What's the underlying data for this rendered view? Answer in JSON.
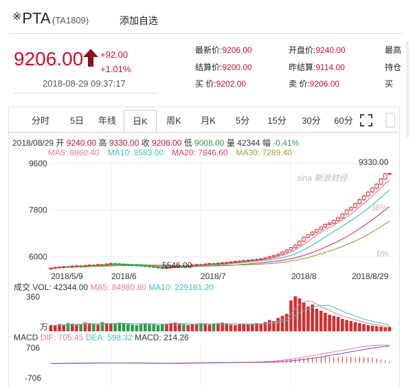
{
  "header": {
    "star_glyph": "※",
    "name": "PTA",
    "code": "(TA1809)",
    "watch_label": "添加自选"
  },
  "quote": {
    "price": "9206.00",
    "change": "+92.00",
    "change_pct": "+1.01%",
    "time": "2018-08-29 09:37:17",
    "fields": [
      {
        "label": "最新价:",
        "value": "9206.00"
      },
      {
        "label": "结算价:",
        "value": "9200.00"
      },
      {
        "label": "买  价:",
        "value": "9202.00"
      },
      {
        "label": "开盘价:",
        "value": "9240.00"
      },
      {
        "label": "昨结算:",
        "value": "9114.00"
      },
      {
        "label": "卖  价:",
        "value": "9206.00"
      },
      {
        "label": "最高"
      },
      {
        "label": "持仓"
      },
      {
        "label": "买"
      }
    ]
  },
  "tabs": [
    "分时",
    "5日",
    "年线",
    "日K",
    "周K",
    "月K",
    "5分",
    "15分",
    "30分",
    "60分"
  ],
  "active_tab": 3,
  "toolbar": {
    "fullscreen_icon": "fullscreen-icon"
  },
  "kinfo": {
    "date": "2018/08/29",
    "open_label": "开",
    "open": "9240.00",
    "high_label": "高",
    "high": "9330.00",
    "close_label": "收",
    "close": "9206.00",
    "low_label": "低",
    "low": "9008.00",
    "vol_label": "量",
    "vol": "42344",
    "amp_label": "幅",
    "amp": "-0.41%"
  },
  "ma": [
    {
      "label": "MA5: 8860.40",
      "color": "#e8799b"
    },
    {
      "label": "MA10: 8583.00",
      "color": "#3fbfc4"
    },
    {
      "label": "MA20: 7846.60",
      "color": "#d0407a"
    },
    {
      "label": "MA30: 7289.40",
      "color": "#9aa33a"
    }
  ],
  "watermark": "sina 新浪财经",
  "chart_data": [
    {
      "type": "candlestick",
      "y_ticks": [
        "9600",
        "7800",
        "6000"
      ],
      "y_values": [
        9600,
        7800,
        6000
      ],
      "x_ticks": [
        "2018/5/9",
        "2018/6",
        "2018/7",
        "2018/8",
        "2018/8/29"
      ],
      "right_labels": [
        "38%",
        "6%"
      ],
      "annotations": {
        "max": "9330.00",
        "min": "5546.00"
      },
      "closes": [
        5560,
        5590,
        5600,
        5620,
        5610,
        5640,
        5650,
        5630,
        5660,
        5680,
        5670,
        5700,
        5690,
        5720,
        5740,
        5730,
        5710,
        5700,
        5690,
        5680,
        5670,
        5650,
        5640,
        5620,
        5600,
        5580,
        5560,
        5580,
        5600,
        5620,
        5640,
        5630,
        5650,
        5680,
        5700,
        5690,
        5720,
        5740,
        5730,
        5750,
        5770,
        5780,
        5800,
        5820,
        5830,
        5850,
        5870,
        5880,
        5900,
        5920,
        5960,
        6000,
        6050,
        6100,
        6180,
        6260,
        6350,
        6450,
        6600,
        6750,
        6850,
        6950,
        7050,
        7150,
        7250,
        7300,
        7400,
        7500,
        7650,
        7800,
        7900,
        8050,
        8200,
        8350,
        8500,
        8650,
        8800,
        9000,
        9200,
        9206
      ]
    },
    {
      "type": "bar",
      "label_prefix": "成交",
      "vol_label": "VOL: 42344.00",
      "ma5_label": "MA5: 84980.80",
      "ma10_label": "MA10: 229181.20",
      "y_top": "360",
      "unit": "万",
      "ylim": [
        0,
        360
      ],
      "values": [
        60,
        55,
        70,
        65,
        80,
        75,
        60,
        70,
        85,
        80,
        70,
        65,
        90,
        75,
        70,
        80,
        85,
        75,
        70,
        65,
        60,
        75,
        80,
        70,
        65,
        60,
        70,
        75,
        80,
        85,
        70,
        65,
        60,
        70,
        75,
        80,
        70,
        65,
        75,
        80,
        85,
        70,
        65,
        60,
        70,
        75,
        65,
        70,
        80,
        75,
        90,
        110,
        100,
        130,
        150,
        170,
        300,
        340,
        320,
        280,
        240,
        260,
        220,
        200,
        180,
        160,
        150,
        140,
        120,
        110,
        100,
        90,
        80,
        70,
        60,
        55,
        50,
        45,
        40,
        42
      ]
    },
    {
      "type": "line",
      "macd_label": "MACD",
      "dif_label": "DIF: 705.45",
      "dea_label": "DEA: 598.32",
      "macd_value": "MACD: 214.26",
      "y_ticks": [
        "706",
        "-706"
      ],
      "ylim": [
        -706,
        706
      ],
      "dif": [
        -20,
        -18,
        -15,
        -12,
        -10,
        -8,
        -6,
        -5,
        -3,
        -2,
        0,
        1,
        2,
        3,
        2,
        1,
        0,
        -2,
        -4,
        -6,
        -8,
        -10,
        -12,
        -14,
        -15,
        -16,
        -15,
        -13,
        -10,
        -8,
        -5,
        -3,
        0,
        2,
        4,
        6,
        8,
        10,
        12,
        14,
        16,
        18,
        20,
        22,
        24,
        26,
        28,
        30,
        35,
        40,
        50,
        60,
        75,
        90,
        110,
        130,
        150,
        175,
        200,
        230,
        260,
        290,
        320,
        350,
        380,
        410,
        440,
        470,
        500,
        530,
        560,
        590,
        620,
        650,
        670,
        690,
        700,
        705,
        706,
        705
      ]
    }
  ]
}
